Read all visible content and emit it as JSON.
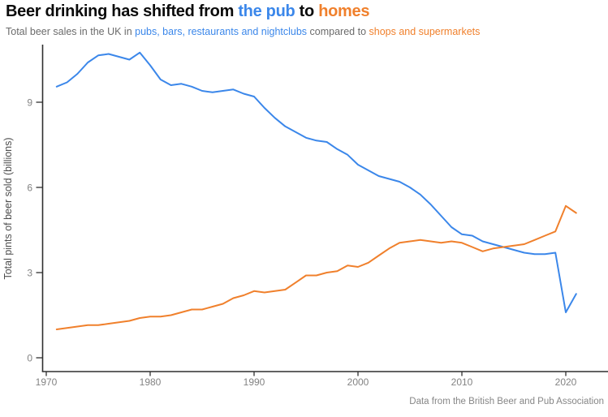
{
  "header": {
    "title_part1": "Beer drinking has shifted from ",
    "title_blue": "the pub",
    "title_part2": " to ",
    "title_orange": "homes",
    "sub_part1": "Total beer sales in the UK in ",
    "sub_blue": "pubs, bars, restaurants and nightclubs",
    "sub_part2": " compared to ",
    "sub_orange": "shops and supermarkets"
  },
  "footer": {
    "source": "Data from the British Beer and Pub Association"
  },
  "colors": {
    "pub_blue": "#3b87ea",
    "home_orange": "#f0802c",
    "axis": "#2f2f2f",
    "tick_label": "#838383"
  },
  "chart_data": {
    "type": "line",
    "title": "Beer drinking has shifted from the pub to homes",
    "subtitle": "Total beer sales in the UK in pubs, bars, restaurants and nightclubs compared to shops and supermarkets",
    "xlabel": "",
    "ylabel": "Total pints of beer sold (billions)",
    "xticks": [
      1970,
      1980,
      1990,
      2000,
      2010,
      2020
    ],
    "yticks": [
      0,
      3,
      6,
      9
    ],
    "xlim": [
      1969.7,
      2024
    ],
    "ylim": [
      0,
      11.6
    ],
    "grid": false,
    "legend_position": "none — series identified by colored words in subtitle",
    "x": [
      1971,
      1972,
      1973,
      1974,
      1975,
      1976,
      1977,
      1978,
      1979,
      1980,
      1981,
      1982,
      1983,
      1984,
      1985,
      1986,
      1987,
      1988,
      1989,
      1990,
      1991,
      1992,
      1993,
      1994,
      1995,
      1996,
      1997,
      1998,
      1999,
      2000,
      2001,
      2002,
      2003,
      2004,
      2005,
      2006,
      2007,
      2008,
      2009,
      2010,
      2011,
      2012,
      2013,
      2014,
      2015,
      2016,
      2017,
      2018,
      2019,
      2020,
      2021
    ],
    "series": [
      {
        "id": "on_trade",
        "name": "Pubs, bars, restaurants and nightclubs",
        "color": "#3b87ea",
        "values": [
          9.55,
          9.7,
          10.0,
          10.4,
          10.65,
          10.7,
          10.6,
          10.5,
          10.75,
          10.3,
          9.8,
          9.6,
          9.65,
          9.55,
          9.4,
          9.35,
          9.4,
          9.45,
          9.3,
          9.2,
          8.8,
          8.45,
          8.15,
          7.95,
          7.75,
          7.65,
          7.6,
          7.35,
          7.15,
          6.8,
          6.6,
          6.4,
          6.3,
          6.2,
          6.0,
          5.75,
          5.4,
          5.0,
          4.6,
          4.35,
          4.3,
          4.1,
          4.0,
          3.9,
          3.8,
          3.7,
          3.65,
          3.65,
          3.7,
          1.6,
          2.25
        ]
      },
      {
        "id": "off_trade",
        "name": "Shops and supermarkets",
        "color": "#f0802c",
        "values": [
          1.0,
          1.05,
          1.1,
          1.15,
          1.15,
          1.2,
          1.25,
          1.3,
          1.4,
          1.45,
          1.45,
          1.5,
          1.6,
          1.7,
          1.7,
          1.8,
          1.9,
          2.1,
          2.2,
          2.35,
          2.3,
          2.35,
          2.4,
          2.65,
          2.9,
          2.9,
          3.0,
          3.05,
          3.25,
          3.2,
          3.35,
          3.6,
          3.85,
          4.05,
          4.1,
          4.15,
          4.1,
          4.05,
          4.1,
          4.05,
          3.9,
          3.75,
          3.85,
          3.9,
          3.95,
          4.0,
          4.15,
          4.3,
          4.45,
          5.35,
          5.1
        ]
      }
    ]
  }
}
